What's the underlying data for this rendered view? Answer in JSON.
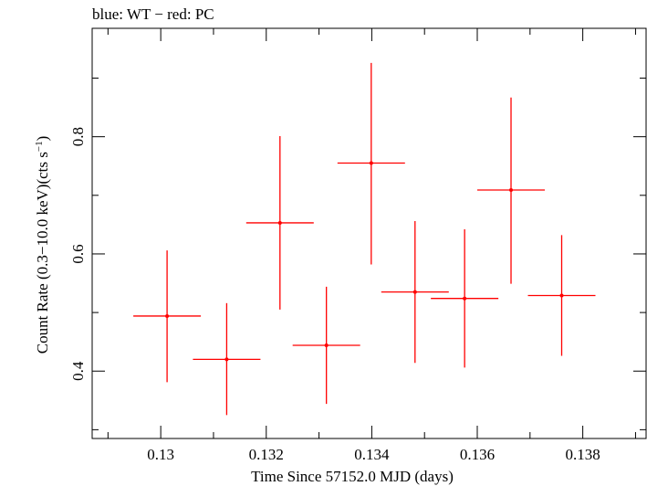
{
  "chart_data": {
    "type": "scatter",
    "title": "blue: WT − red: PC",
    "xlabel": "Time Since 57152.0 MJD (days)",
    "ylabel_main": "Count Rate (0.3−10.0 keV)(cts s",
    "ylabel_sup": "−1",
    "ylabel_end": ")",
    "xlim": [
      0.1287,
      0.1392
    ],
    "ylim": [
      0.285,
      0.985
    ],
    "x_ticks": [
      0.13,
      0.132,
      0.134,
      0.136,
      0.138
    ],
    "x_tick_labels": [
      "0.13",
      "0.132",
      "0.134",
      "0.136",
      "0.138"
    ],
    "x_minor_ticks": [
      0.129,
      0.131,
      0.133,
      0.135,
      0.137,
      0.139
    ],
    "y_ticks": [
      0.4,
      0.6,
      0.8
    ],
    "y_tick_labels": [
      "0.4",
      "0.6",
      "0.8"
    ],
    "y_minor_ticks": [
      0.3,
      0.5,
      0.7,
      0.9
    ],
    "grid": false,
    "series": [
      {
        "color": "#ff0000",
        "points": [
          {
            "x": 0.13012,
            "xerr": 0.00064,
            "y": 0.494,
            "yerr_low": 0.113,
            "yerr_high": 0.112
          },
          {
            "x": 0.13125,
            "xerr": 0.00064,
            "y": 0.42,
            "yerr_low": 0.095,
            "yerr_high": 0.096
          },
          {
            "x": 0.13226,
            "xerr": 0.00064,
            "y": 0.653,
            "yerr_low": 0.148,
            "yerr_high": 0.148
          },
          {
            "x": 0.13314,
            "xerr": 0.00064,
            "y": 0.444,
            "yerr_low": 0.1,
            "yerr_high": 0.1
          },
          {
            "x": 0.13399,
            "xerr": 0.00064,
            "y": 0.755,
            "yerr_low": 0.173,
            "yerr_high": 0.171
          },
          {
            "x": 0.13482,
            "xerr": 0.00064,
            "y": 0.535,
            "yerr_low": 0.121,
            "yerr_high": 0.121
          },
          {
            "x": 0.13576,
            "xerr": 0.00064,
            "y": 0.524,
            "yerr_low": 0.118,
            "yerr_high": 0.118
          },
          {
            "x": 0.13664,
            "xerr": 0.00064,
            "y": 0.709,
            "yerr_low": 0.16,
            "yerr_high": 0.158
          },
          {
            "x": 0.1376,
            "xerr": 0.00064,
            "y": 0.529,
            "yerr_low": 0.103,
            "yerr_high": 0.103
          }
        ]
      }
    ]
  }
}
